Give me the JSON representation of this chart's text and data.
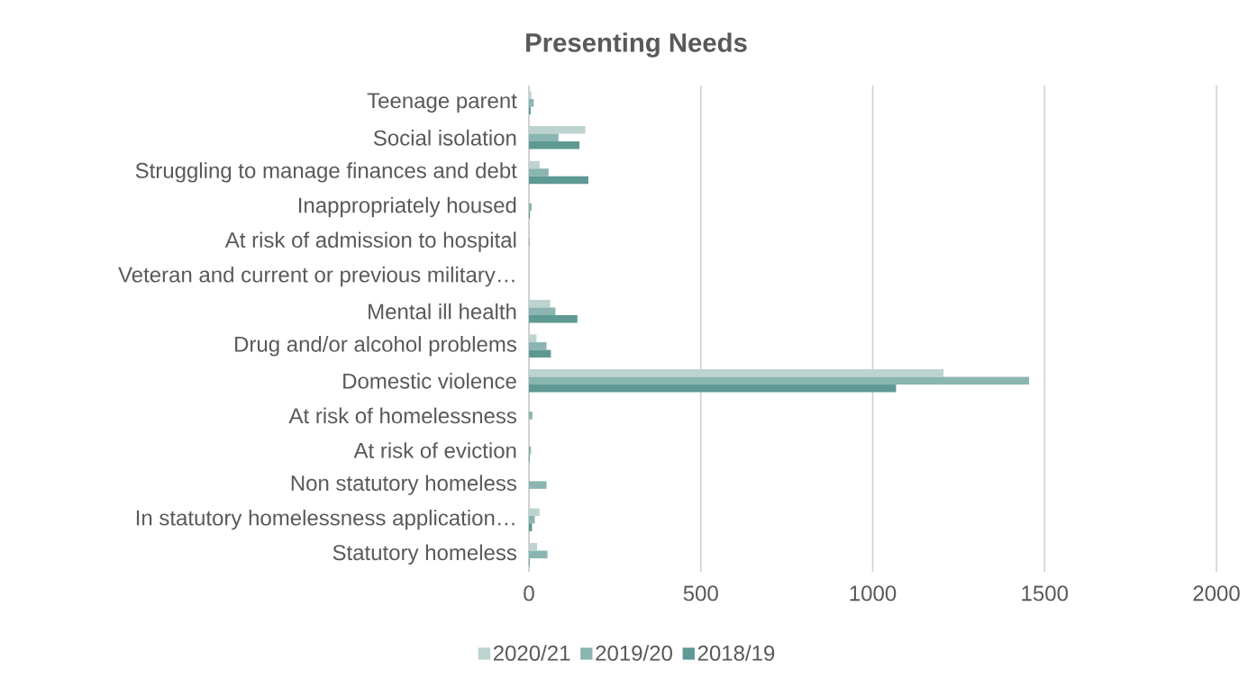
{
  "chart_data": {
    "type": "bar",
    "orientation": "horizontal",
    "title": "Presenting Needs",
    "categories": [
      "Teenage parent",
      "Social isolation",
      "Struggling to manage finances and debt",
      "Inappropriately housed",
      "At risk of admission to hospital",
      "Veteran and current or previous military…",
      "Mental ill health",
      "Drug and/or alcohol problems",
      "Domestic violence",
      "At risk of homelessness",
      "At risk of eviction",
      "Non statutory homeless",
      "In statutory homelessness application…",
      "Statutory homeless"
    ],
    "series": [
      {
        "name": "2020/21",
        "color": "#bdd3d0",
        "values": [
          7,
          164,
          31,
          0,
          0,
          0,
          62,
          22,
          1206,
          0,
          null,
          0,
          31,
          24
        ]
      },
      {
        "name": "2019/20",
        "color": "#8ab5b0",
        "values": [
          14,
          86,
          57,
          8,
          2,
          0,
          77,
          51,
          1455,
          10,
          6,
          51,
          17,
          54
        ]
      },
      {
        "name": "2018/19",
        "color": "#5e9993",
        "values": [
          5,
          147,
          173,
          3,
          null,
          0,
          141,
          64,
          1068,
          0,
          2,
          0,
          9,
          2
        ]
      }
    ],
    "xlim": [
      0,
      2000
    ],
    "xticks": [
      0,
      500,
      1000,
      1500,
      2000
    ],
    "grid": "x",
    "legend": "bottom"
  }
}
